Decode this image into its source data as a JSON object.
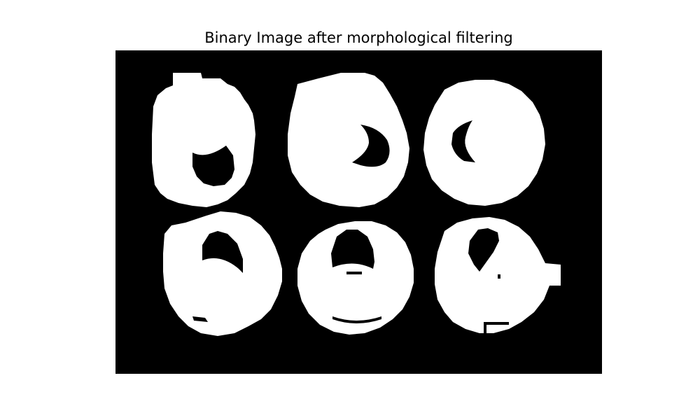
{
  "figure": {
    "title": "Binary Image after morphological filtering"
  },
  "image": {
    "kind": "binary-mask",
    "background_color": "#000000",
    "foreground_color": "#ffffff",
    "blob_count": 6,
    "grid": "2 rows x 3 columns"
  }
}
